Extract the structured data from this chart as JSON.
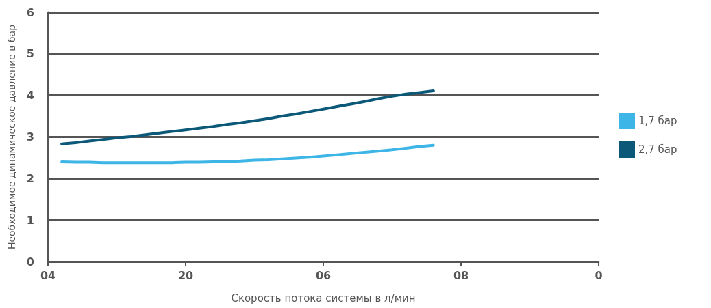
{
  "chart_data": {
    "type": "line",
    "xlabel": "Скорость потока системы в л/мин",
    "ylabel": "Необходимое динамическое давление в бар",
    "categories": [
      "04",
      null,
      null,
      null,
      null,
      null,
      null,
      null,
      null,
      null,
      "20",
      null,
      null,
      null,
      null,
      null,
      null,
      null,
      null,
      null,
      "06",
      null,
      null,
      null,
      null,
      null,
      null,
      null,
      null,
      null,
      "08",
      null,
      null,
      null,
      null,
      null,
      null,
      null,
      null,
      null,
      "0"
    ],
    "series": [
      {
        "name": "1,7 бар",
        "color": "#3db5e6",
        "values": [
          null,
          2.4,
          2.39,
          2.39,
          2.38,
          2.38,
          2.38,
          2.38,
          2.38,
          2.38,
          2.39,
          2.39,
          2.4,
          2.41,
          2.42,
          2.44,
          2.45,
          2.47,
          2.49,
          2.51,
          2.54,
          2.57,
          2.6,
          2.63,
          2.66,
          2.69,
          2.73,
          2.77,
          2.8,
          null,
          null,
          null,
          null,
          null,
          null,
          null,
          null,
          null,
          null,
          null,
          null
        ]
      },
      {
        "name": "2,7 бар",
        "color": "#0b5878",
        "values": [
          null,
          2.83,
          2.86,
          2.9,
          2.94,
          2.98,
          3.01,
          3.05,
          3.09,
          3.13,
          3.17,
          3.21,
          3.25,
          3.3,
          3.34,
          3.39,
          3.44,
          3.5,
          3.55,
          3.61,
          3.67,
          3.73,
          3.79,
          3.85,
          3.92,
          3.98,
          4.03,
          4.07,
          4.11,
          null,
          null,
          null,
          null,
          null,
          null,
          null,
          null,
          null,
          null,
          null,
          null
        ]
      }
    ],
    "ylim": [
      0,
      6
    ],
    "yticks": [
      0,
      1,
      2,
      3,
      4,
      5,
      6
    ],
    "grid": "y",
    "legend": "right",
    "marker": "none",
    "line_style": "solid"
  }
}
